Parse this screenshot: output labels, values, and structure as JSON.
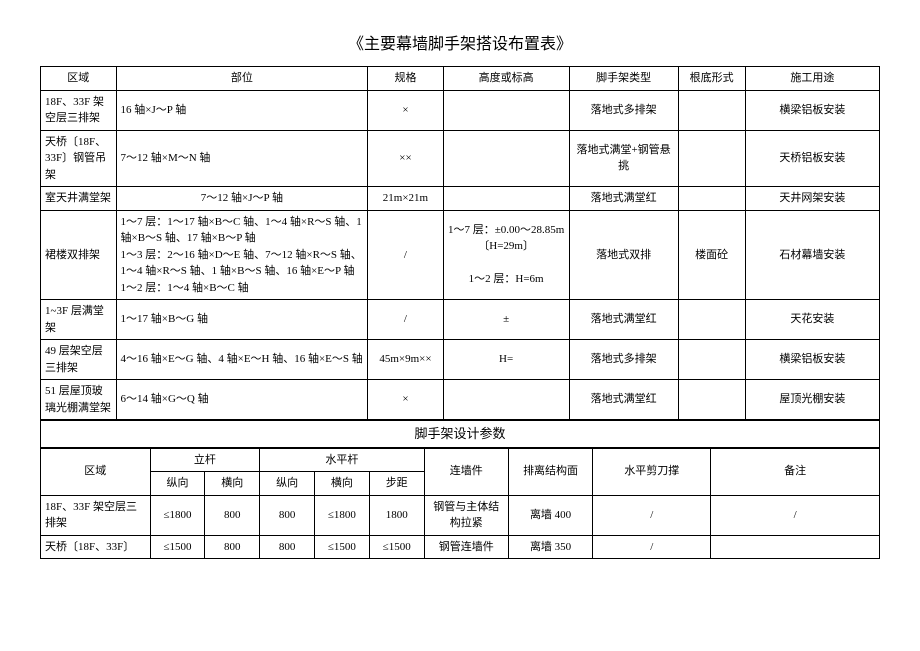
{
  "title": "《主要幕墙脚手架搭设布置表》",
  "t1": {
    "h": [
      "区域",
      "部位",
      "规格",
      "高度或标高",
      "脚手架类型",
      "根底形式",
      "施工用途"
    ],
    "r": [
      {
        "a": "18F、33F 架空层三排架",
        "b": "16 轴×J～P 轴",
        "c": "×",
        "d": "",
        "e": "落地式多排架",
        "f": "",
        "g": "横梁铝板安装"
      },
      {
        "a": "天桥〔18F、33F〕钢管吊架",
        "b": "7～12 轴×M～N 轴",
        "c": "××",
        "d": "",
        "e": "落地式满堂+钢管悬挑",
        "f": "",
        "g": "天桥铝板安装"
      },
      {
        "a": "室天井满堂架",
        "b": "7～12 轴×J～P 轴",
        "c": "21m×21m",
        "d": "",
        "e": "落地式满堂红",
        "f": "",
        "g": "天井网架安装"
      },
      {
        "a": "裙楼双排架",
        "b": "1～7 层：1～17 轴×B～C 轴、1～4 轴×R～S 轴、1 轴×B～S 轴、17 轴×B～P 轴\n1～3 层：2～16 轴×D～E 轴、7～12 轴×R～S 轴、1～4 轴×R～S 轴、1 轴×B～S 轴、16 轴×E～P 轴\n1～2 层：1～4 轴×B～C 轴",
        "c": "/",
        "d": "1～7 层：±0.00～28.85m〔H=29m〕\n\n1～2 层：H=6m",
        "e": "落地式双排",
        "f": "楼面砼",
        "g": "石材幕墙安装"
      },
      {
        "a": "1~3F 层满堂架",
        "b": "1～17 轴×B～G 轴",
        "c": "/",
        "d": "±",
        "e": "落地式满堂红",
        "f": "",
        "g": "天花安装"
      },
      {
        "a": "49 层架空层三排架",
        "b": "4～16 轴×E～G 轴、4 轴×E～H 轴、16 轴×E～S 轴",
        "c": "45m×9m××",
        "d": "H=",
        "e": "落地式多排架",
        "f": "",
        "g": "横梁铝板安装"
      },
      {
        "a": "51 层屋顶玻璃光棚满堂架",
        "b": "6～14 轴×G～Q 轴",
        "c": "×",
        "d": "",
        "e": "落地式满堂红",
        "f": "",
        "g": "屋顶光棚安装"
      }
    ]
  },
  "sub": "脚手架设计参数",
  "t2": {
    "h1": [
      "区域",
      "立杆",
      "水平杆",
      "连墙件",
      "排离结构面",
      "水平剪刀撑",
      "备注"
    ],
    "h2": [
      "纵向",
      "横向",
      "纵向",
      "横向",
      "步距"
    ],
    "r": [
      {
        "a": "18F、33F 架空层三排架",
        "v": [
          "≤1800",
          "800",
          "800",
          "≤1800",
          "1800"
        ],
        "l": "钢管与主体结构拉紧",
        "p": "离墙 400",
        "s": "/",
        "n": "/"
      },
      {
        "a": "天桥〔18F、33F〕",
        "v": [
          "≤1500",
          "800",
          "800",
          "≤1500",
          "≤1500"
        ],
        "l": "钢管连墙件",
        "p": "离墙 350",
        "s": "/",
        "n": ""
      }
    ]
  }
}
